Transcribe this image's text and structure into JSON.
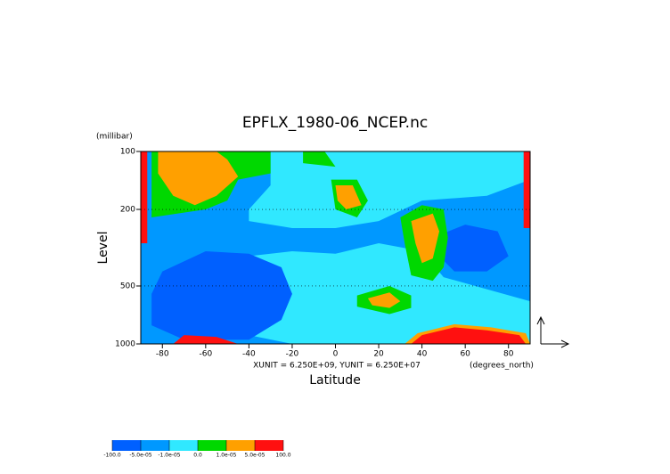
{
  "chart_data": {
    "type": "contour",
    "title": "EPFLX_1980-06_NCEP.nc",
    "xlabel": "Latitude",
    "ylabel": "Level",
    "y_unit": "(millibar)",
    "x_unit": "(degrees_north)",
    "annotation": "XUNIT = 6.250E+09, YUNIT = 6.250E+07",
    "xlim": [
      -90,
      90
    ],
    "xticks": [
      -80,
      -60,
      -40,
      -20,
      0,
      20,
      40,
      60,
      80
    ],
    "ylim": [
      1000,
      100
    ],
    "yticks": [
      100,
      200,
      500,
      1000
    ],
    "log_y": true,
    "colors": [
      "#0060ff",
      "#0098ff",
      "#30e8ff",
      "#00d800",
      "#ffa000",
      "#ff1010"
    ],
    "levels": [
      {
        "value": -100,
        "label": "-100.0"
      },
      {
        "value": -5e-05,
        "label": "-5.0e-05"
      },
      {
        "value": -1e-05,
        "label": "-1.0e-05"
      },
      {
        "value": 0,
        "label": "0.0"
      },
      {
        "value": 1e-05,
        "label": "1.0e-05"
      },
      {
        "value": 5e-05,
        "label": "5.0e-05"
      },
      {
        "value": 100,
        "label": "100.0"
      }
    ],
    "regions": [
      {
        "level": 1,
        "points": [
          [
            -90,
            100
          ],
          [
            90,
            100
          ],
          [
            90,
            1000
          ],
          [
            -90,
            1000
          ]
        ]
      },
      {
        "level": 2,
        "points": [
          [
            -30,
            100
          ],
          [
            90,
            100
          ],
          [
            90,
            140
          ],
          [
            70,
            170
          ],
          [
            40,
            180
          ],
          [
            20,
            230
          ],
          [
            0,
            250
          ],
          [
            -20,
            250
          ],
          [
            -40,
            230
          ],
          [
            -40,
            200
          ],
          [
            -30,
            150
          ]
        ]
      },
      {
        "level": 2,
        "points": [
          [
            -40,
            350
          ],
          [
            -20,
            330
          ],
          [
            0,
            340
          ],
          [
            20,
            300
          ],
          [
            40,
            330
          ],
          [
            50,
            450
          ],
          [
            70,
            520
          ],
          [
            90,
            600
          ],
          [
            90,
            1000
          ],
          [
            -20,
            1000
          ],
          [
            -40,
            900
          ],
          [
            -60,
            600
          ]
        ]
      },
      {
        "level": 0,
        "points": [
          [
            -80,
            420
          ],
          [
            -60,
            330
          ],
          [
            -40,
            340
          ],
          [
            -25,
            400
          ],
          [
            -20,
            550
          ],
          [
            -25,
            750
          ],
          [
            -40,
            950
          ],
          [
            -70,
            950
          ],
          [
            -85,
            800
          ],
          [
            -85,
            550
          ]
        ]
      },
      {
        "level": 0,
        "points": [
          [
            45,
            280
          ],
          [
            60,
            240
          ],
          [
            75,
            260
          ],
          [
            80,
            350
          ],
          [
            70,
            420
          ],
          [
            55,
            420
          ],
          [
            48,
            350
          ]
        ]
      },
      {
        "level": 3,
        "points": [
          [
            -85,
            100
          ],
          [
            -30,
            100
          ],
          [
            -30,
            130
          ],
          [
            -45,
            140
          ],
          [
            -50,
            180
          ],
          [
            -60,
            200
          ],
          [
            -85,
            220
          ]
        ]
      },
      {
        "level": 4,
        "points": [
          [
            -82,
            100
          ],
          [
            -55,
            100
          ],
          [
            -50,
            110
          ],
          [
            -45,
            135
          ],
          [
            -55,
            170
          ],
          [
            -65,
            190
          ],
          [
            -75,
            170
          ],
          [
            -82,
            130
          ]
        ]
      },
      {
        "level": 3,
        "points": [
          [
            -15,
            100
          ],
          [
            -5,
            100
          ],
          [
            0,
            120
          ],
          [
            -15,
            115
          ]
        ]
      },
      {
        "level": 3,
        "points": [
          [
            -2,
            140
          ],
          [
            10,
            140
          ],
          [
            15,
            180
          ],
          [
            10,
            220
          ],
          [
            0,
            200
          ]
        ]
      },
      {
        "level": 4,
        "points": [
          [
            0,
            150
          ],
          [
            8,
            150
          ],
          [
            12,
            190
          ],
          [
            5,
            200
          ],
          [
            1,
            180
          ]
        ]
      },
      {
        "level": 3,
        "points": [
          [
            30,
            220
          ],
          [
            40,
            190
          ],
          [
            50,
            200
          ],
          [
            52,
            280
          ],
          [
            50,
            400
          ],
          [
            45,
            470
          ],
          [
            35,
            440
          ],
          [
            32,
            300
          ]
        ]
      },
      {
        "level": 4,
        "points": [
          [
            35,
            230
          ],
          [
            45,
            210
          ],
          [
            48,
            260
          ],
          [
            45,
            360
          ],
          [
            40,
            380
          ],
          [
            37,
            300
          ]
        ]
      },
      {
        "level": 3,
        "points": [
          [
            10,
            560
          ],
          [
            25,
            500
          ],
          [
            35,
            560
          ],
          [
            35,
            650
          ],
          [
            25,
            700
          ],
          [
            10,
            640
          ]
        ]
      },
      {
        "level": 4,
        "points": [
          [
            15,
            580
          ],
          [
            25,
            540
          ],
          [
            30,
            600
          ],
          [
            25,
            650
          ],
          [
            17,
            630
          ]
        ]
      },
      {
        "level": 4,
        "points": [
          [
            32,
            1000
          ],
          [
            38,
            880
          ],
          [
            55,
            790
          ],
          [
            72,
            820
          ],
          [
            88,
            880
          ],
          [
            90,
            1000
          ]
        ]
      },
      {
        "level": 5,
        "points": [
          [
            35,
            1000
          ],
          [
            40,
            900
          ],
          [
            55,
            820
          ],
          [
            70,
            850
          ],
          [
            85,
            900
          ],
          [
            88,
            1000
          ]
        ]
      },
      {
        "level": 5,
        "points": [
          [
            -75,
            1000
          ],
          [
            -70,
            900
          ],
          [
            -55,
            920
          ],
          [
            -45,
            1000
          ]
        ]
      },
      {
        "level": 5,
        "points": [
          [
            87,
            100
          ],
          [
            90,
            100
          ],
          [
            90,
            250
          ],
          [
            87,
            250
          ]
        ]
      },
      {
        "level": 5,
        "points": [
          [
            -90,
            100
          ],
          [
            -87,
            100
          ],
          [
            -87,
            300
          ],
          [
            -90,
            300
          ]
        ]
      }
    ]
  }
}
